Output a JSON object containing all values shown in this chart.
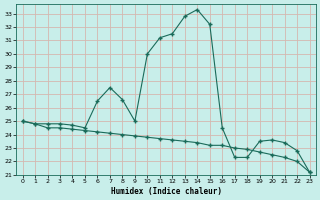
{
  "xlabel": "Humidex (Indice chaleur)",
  "background_color": "#c8eeea",
  "grid_color": "#d4b8b0",
  "line_color": "#1a6b5a",
  "xlim": [
    -0.5,
    23.5
  ],
  "ylim": [
    21,
    33.7
  ],
  "yticks": [
    21,
    22,
    23,
    24,
    25,
    26,
    27,
    28,
    29,
    30,
    31,
    32,
    33
  ],
  "xticks": [
    0,
    1,
    2,
    3,
    4,
    5,
    6,
    7,
    8,
    9,
    10,
    11,
    12,
    13,
    14,
    15,
    16,
    17,
    18,
    19,
    20,
    21,
    22,
    23
  ],
  "series1_x": [
    0,
    1,
    2,
    3,
    4,
    5,
    6,
    7,
    8,
    9,
    10,
    11,
    12,
    13,
    14,
    15,
    16,
    17,
    18,
    19,
    20,
    21,
    22,
    23
  ],
  "series1_y": [
    25.0,
    24.8,
    24.8,
    24.8,
    24.7,
    24.5,
    26.5,
    27.5,
    26.6,
    25.0,
    30.0,
    31.2,
    31.5,
    32.8,
    33.3,
    32.2,
    24.5,
    22.3,
    22.3,
    23.5,
    23.6,
    23.4,
    22.8,
    21.2
  ],
  "series2_x": [
    0,
    1,
    2,
    3,
    4,
    5,
    6,
    7,
    8,
    9,
    10,
    11,
    12,
    13,
    14,
    15,
    16,
    17,
    18,
    19,
    20,
    21,
    22,
    23
  ],
  "series2_y": [
    25.0,
    24.8,
    24.5,
    24.5,
    24.4,
    24.3,
    24.2,
    24.1,
    24.0,
    23.9,
    23.8,
    23.7,
    23.6,
    23.5,
    23.4,
    23.2,
    23.2,
    23.0,
    22.9,
    22.7,
    22.5,
    22.3,
    22.0,
    21.2
  ]
}
